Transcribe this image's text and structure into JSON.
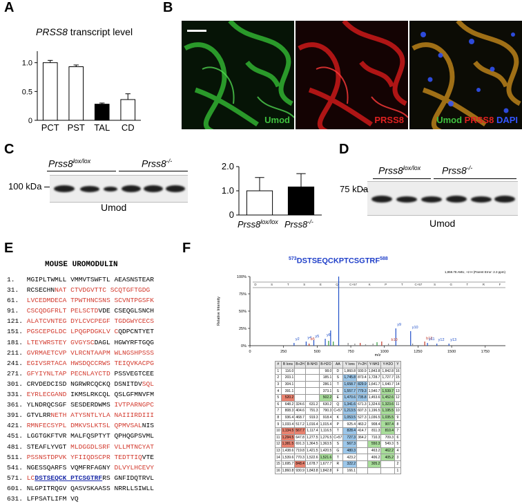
{
  "panels": {
    "A": "A",
    "B": "B",
    "C": "C",
    "D": "D",
    "E": "E",
    "F": "F"
  },
  "panel_a": {
    "title": "PRSS8 transcript level",
    "title_italic": "PRSS8",
    "title_rest": " transcript level",
    "chart_data": {
      "type": "bar",
      "categories": [
        "PCT",
        "PST",
        "TAL",
        "CD"
      ],
      "values": [
        1.0,
        0.93,
        0.28,
        0.36
      ],
      "errors": [
        0.04,
        0.03,
        0.02,
        0.1
      ],
      "fills": [
        "#ffffff",
        "#ffffff",
        "#000000",
        "#ffffff"
      ],
      "yticks": [
        "0",
        "0.5",
        "1.0"
      ],
      "ylim": [
        0,
        1.2
      ]
    }
  },
  "panel_b": {
    "captions": {
      "umod": "Umod",
      "prss8": "PRSS8",
      "merge_umod": "Umod",
      "merge_prss8": "PRSS8",
      "merge_dapi": "DAPI"
    },
    "colors": {
      "umod": "#3fc23f",
      "prss8": "#e02020",
      "dapi": "#3355ff"
    }
  },
  "panel_c": {
    "group1": "Prss8lox/lox",
    "group1_base": "Prss8",
    "group1_sup": "lox/lox",
    "group2": "Prss8-/-",
    "group2_base": "Prss8",
    "group2_sup": "-/-",
    "marker": "100 kDa",
    "blot_label": "Umod",
    "chart_data": {
      "type": "bar",
      "categories": [
        "Prss8lox/lox",
        "Prss8-/-"
      ],
      "values": [
        1.0,
        1.16
      ],
      "errors": [
        0.55,
        0.55
      ],
      "fills": [
        "#ffffff",
        "#000000"
      ],
      "yticks": [
        "0",
        "1.0",
        "2.0"
      ],
      "ylim": [
        0,
        2.0
      ]
    }
  },
  "panel_d": {
    "group1_base": "Prss8",
    "group1_sup": "lox/lox",
    "group2_base": "Prss8",
    "group2_sup": "-/-",
    "marker": "75 kDa",
    "blot_label": "Umod"
  },
  "panel_e": {
    "title": "MOUSE UROMODULIN",
    "lines": [
      {
        "num": "1.",
        "segs": [
          [
            "MGIPLTWMLL VMMVTSWFTL AEASNSTEAR",
            ""
          ]
        ]
      },
      {
        "num": "31.",
        "segs": [
          [
            "RCSECHN",
            ""
          ],
          [
            "NAT CTVDGVTTC SCQTGFTGDG",
            "r"
          ]
        ]
      },
      {
        "num": "61.",
        "segs": [
          [
            "LVCEDMDECA TPWTHNCSNS SCVNTPGSFK",
            "r"
          ]
        ]
      },
      {
        "num": "91.",
        "segs": [
          [
            "CSCQDGFRLT PELSCTD",
            "r"
          ],
          [
            "VDE CSEQGLSNCH",
            ""
          ]
        ]
      },
      {
        "num": "121.",
        "segs": [
          [
            "ALATCVNTEG ",
            "r0"
          ],
          [
            "DYLCVCPEGF TGDGWYCECS",
            "r"
          ]
        ]
      },
      {
        "num": "151.",
        "segs": [
          [
            "PGSCEPGLDC LPQGPDGKLV C",
            "r"
          ],
          [
            "QDPCNTYET",
            ""
          ]
        ]
      },
      {
        "num": "181.",
        "segs": [
          [
            "LTEYWRSTEY GVGYSC",
            "r"
          ],
          [
            "DAGL HGWYRFTGQG",
            ""
          ]
        ]
      },
      {
        "num": "211.",
        "segs": [
          [
            "GVRMAETCVP VLRCNTAAPM WLNGSHPSSS",
            "r"
          ]
        ]
      },
      {
        "num": "241.",
        "segs": [
          [
            "EGIVSRTACA HWSDQCCRWS TEIQVKACPG",
            "r"
          ]
        ]
      },
      {
        "num": "271.",
        "segs": [
          [
            "GFYIYNLTAP PECNLAYCTD ",
            "r"
          ],
          [
            "PSSVEGTCEE",
            ""
          ]
        ]
      },
      {
        "num": "301.",
        "segs": [
          [
            "CRVDEDCISD NGRWRCQCKQ DSNITDV",
            "0"
          ],
          [
            "SQL",
            "r"
          ]
        ]
      },
      {
        "num": "331.",
        "segs": [
          [
            "EYRLECGAND IKMSLRKCQL QSLGFMNVFM",
            "r0"
          ]
        ]
      },
      {
        "num": "361.",
        "segs": [
          [
            "YLNDRQCSGF SESDERDWMS IVTPARNGPC",
            "0r"
          ]
        ]
      },
      {
        "num": "391.",
        "segs": [
          [
            "GTVLRR",
            "0"
          ],
          [
            "NETH ATYSNTLYLA NAIIIRDIII",
            "r"
          ]
        ]
      },
      {
        "num": "421.",
        "segs": [
          [
            "RMNFECSYPL DMKVSLKTSL QPMVSAL",
            "r"
          ],
          [
            "NIS",
            ""
          ]
        ]
      },
      {
        "num": "451.",
        "segs": [
          [
            "LGGTGKFTVR MALFQSPTYT QPHQGPSVML",
            ""
          ]
        ]
      },
      {
        "num": "481.",
        "segs": [
          [
            "STEAFLYVGT ",
            "0"
          ],
          [
            "MLDGGDLSRF VLLMTNCYAT",
            "r"
          ]
        ]
      },
      {
        "num": "511.",
        "segs": [
          [
            "PSSNSTDPVK YFIIQDSCPR TEDTTIQ",
            "r"
          ],
          [
            "VTE",
            ""
          ]
        ]
      },
      {
        "num": "541.",
        "segs": [
          [
            "NGESSQARFS VQMFRFAGNY ",
            "0"
          ],
          [
            "DLVYLHCEVY",
            "r"
          ]
        ]
      },
      {
        "num": "571.",
        "segs": [
          [
            "LC",
            "r"
          ],
          [
            "DSTSEQCK PTCSGTRF",
            "b"
          ],
          [
            "RS GNFIDQTRVL",
            ""
          ]
        ]
      },
      {
        "num": "601.",
        "segs": [
          [
            "NLGPITRQGV QASVSKAASS NRRLLSIWLL",
            ""
          ]
        ]
      },
      {
        "num": "631.",
        "segs": [
          [
            "LFPSATLIFM VQ",
            ""
          ]
        ]
      }
    ]
  },
  "panel_f": {
    "peptide_start": "573",
    "peptide": "DSTSEQCKPTCSGTRF",
    "peptide_end": "588",
    "y_axis": "Relative Intensity",
    "x_axis": "m/z",
    "yticks": [
      "0%",
      "25%",
      "50%",
      "75%",
      "100%"
    ],
    "xticks": [
      "0",
      "250",
      "500",
      "750",
      "1000",
      "1250",
      "1500",
      "1750"
    ],
    "header_note": "1,859.78 AMU, +2 H (Parent Error: 2.3 ppm)",
    "peak_labels": [
      "y2",
      "y4",
      "b5",
      "y5",
      "y8",
      "b10",
      "y9",
      "y10",
      "b12",
      "y11",
      "y12",
      "y13"
    ],
    "chart_data": {
      "type": "bar",
      "x": [
        328,
        418,
        440,
        475,
        560,
        585,
        600,
        620,
        660,
        730,
        780,
        820,
        860,
        915,
        945,
        980,
        1030,
        1085,
        1195,
        1210,
        1300,
        1320,
        1390,
        1480
      ],
      "values": [
        4,
        6,
        3,
        8,
        10,
        7,
        22,
        6,
        100,
        4,
        3,
        4,
        2,
        3,
        5,
        6,
        3,
        25,
        21,
        3,
        6,
        4,
        3,
        3
      ],
      "xlim": [
        0,
        1900
      ],
      "ylim": [
        0,
        100
      ]
    },
    "table": {
      "headers": [
        "#",
        "B Ions",
        "B+2H",
        "B-NH3",
        "B-H2O",
        "AA",
        "Y Ions",
        "Y+2H",
        "Y-NH3",
        "Y-H2O",
        "Y"
      ],
      "rows": [
        [
          "1",
          "116.0",
          "",
          "",
          "98.0",
          "D",
          "1,860.8",
          "930.9",
          "1,843.8",
          "1,842.8",
          "16"
        ],
        [
          "2",
          "203.1",
          "",
          "",
          "185.1",
          "S",
          "1,745.8",
          "873.4",
          "1,728.7",
          "1,727.7",
          "15"
        ],
        [
          "3",
          "304.1",
          "",
          "",
          "286.1",
          "T",
          "1,658.7",
          "829.9",
          "1,641.7",
          "1,640.7",
          "14"
        ],
        [
          "4",
          "391.1",
          "",
          "",
          "373.1",
          "S",
          "1,557.7",
          "779.3",
          "1,540.7",
          "1,539.7",
          "13"
        ],
        [
          "5",
          "520.2",
          "",
          "",
          "502.2",
          "E",
          "1,470.6",
          "735.8",
          "1,453.6",
          "1,452.6",
          "12"
        ],
        [
          "6",
          "648.2",
          "324.6",
          "631.2",
          "630.2",
          "Q",
          "1,341.6",
          "671.3",
          "1,324.6",
          "1,323.6",
          "11"
        ],
        [
          "7",
          "808.3",
          "404.6",
          "791.3",
          "790.3",
          "C+57",
          "1,213.5",
          "607.3",
          "1,196.5",
          "1,195.5",
          "10"
        ],
        [
          "8",
          "936.4",
          "468.7",
          "919.3",
          "918.4",
          "K",
          "1,053.5",
          "527.3",
          "1,036.5",
          "1,035.5",
          "9"
        ],
        [
          "9",
          "1,033.4",
          "517.2",
          "1,016.4",
          "1,015.4",
          "P",
          "925.4",
          "463.2",
          "908.4",
          "907.4",
          "8"
        ],
        [
          "10",
          "1,134.5",
          "567.7",
          "1,117.4",
          "1,116.5",
          "T",
          "828.4",
          "414.7",
          "811.3",
          "810.4",
          "7"
        ],
        [
          "11",
          "1,294.5",
          "647.8",
          "1,277.5",
          "1,276.5",
          "C+57",
          "727.3",
          "364.2",
          "710.3",
          "709.3",
          "6"
        ],
        [
          "12",
          "1,381.5",
          "691.3",
          "1,364.5",
          "1,363.5",
          "S",
          "567.3",
          "",
          "550.3",
          "549.3",
          "5"
        ],
        [
          "13",
          "1,438.6",
          "719.8",
          "1,421.5",
          "1,420.5",
          "G",
          "480.3",
          "",
          "463.2",
          "462.2",
          "4"
        ],
        [
          "14",
          "1,539.6",
          "770.3",
          "1,522.6",
          "1,521.6",
          "T",
          "423.2",
          "",
          "406.2",
          "405.2",
          "3"
        ],
        [
          "15",
          "1,695.7",
          "848.4",
          "1,678.7",
          "1,677.7",
          "R",
          "322.2",
          "",
          "305.2",
          "",
          "2"
        ],
        [
          "16",
          "1,860.8",
          "930.9",
          "1,843.8",
          "1,842.8",
          "F",
          "166.1",
          "",
          "",
          "",
          "1"
        ]
      ]
    }
  }
}
